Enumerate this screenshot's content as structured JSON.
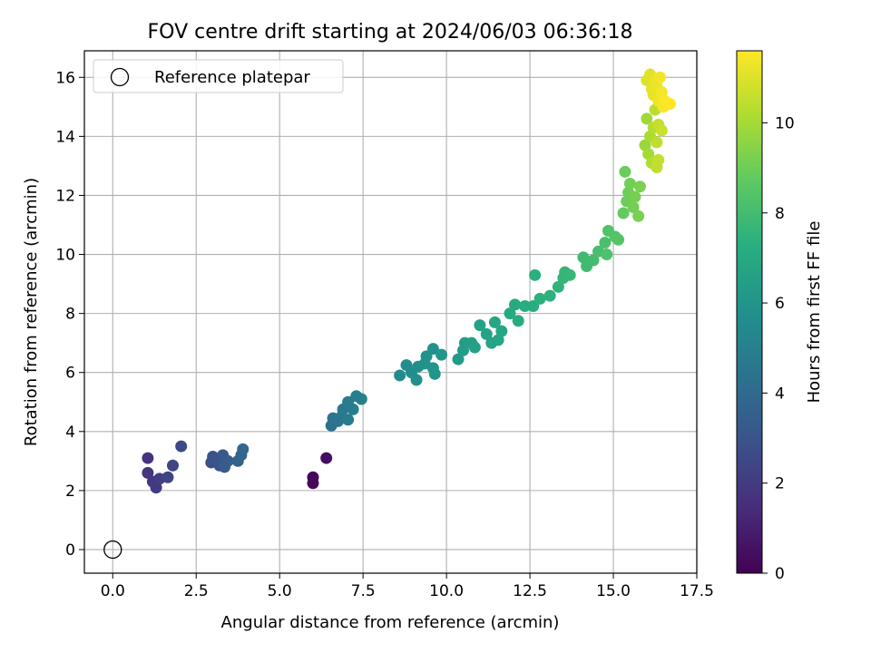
{
  "chart_data": {
    "type": "scatter",
    "title": "FOV centre drift starting at 2024/06/03 06:36:18",
    "xlabel": "Angular distance from reference (arcmin)",
    "ylabel": "Rotation from reference (arcmin)",
    "xlim": [
      -0.85,
      17.5
    ],
    "ylim": [
      -0.8,
      16.9
    ],
    "xticks": [
      0.0,
      2.5,
      5.0,
      7.5,
      10.0,
      12.5,
      15.0,
      17.5
    ],
    "xtick_labels": [
      "0.0",
      "2.5",
      "5.0",
      "7.5",
      "10.0",
      "12.5",
      "15.0",
      "17.5"
    ],
    "yticks": [
      0,
      2,
      4,
      6,
      8,
      10,
      12,
      14,
      16
    ],
    "ytick_labels": [
      "0",
      "2",
      "4",
      "6",
      "8",
      "10",
      "12",
      "14",
      "16"
    ],
    "grid": true,
    "legend": {
      "position": "top-left",
      "entries": [
        {
          "label": "Reference platepar",
          "marker": "open-circle"
        }
      ]
    },
    "reference_point": {
      "x": 0.0,
      "y": 0.0
    },
    "colorbar": {
      "label": "Hours from first FF file",
      "colormap": "viridis",
      "range": [
        0,
        11.6
      ],
      "ticks": [
        0,
        2,
        4,
        6,
        8,
        10
      ],
      "tick_labels": [
        "0",
        "2",
        "4",
        "6",
        "8",
        "10"
      ]
    },
    "points": [
      [
        6.0,
        2.45,
        0.2
      ],
      [
        6.0,
        2.25,
        0.3
      ],
      [
        6.4,
        3.1,
        0.5
      ],
      [
        1.05,
        3.1,
        1.7
      ],
      [
        1.05,
        2.6,
        1.8
      ],
      [
        1.2,
        2.3,
        1.9
      ],
      [
        1.3,
        2.1,
        2.0
      ],
      [
        1.4,
        2.4,
        2.1
      ],
      [
        1.65,
        2.45,
        2.3
      ],
      [
        1.8,
        2.85,
        2.4
      ],
      [
        2.05,
        3.5,
        2.5
      ],
      [
        2.95,
        2.95,
        2.8
      ],
      [
        3.0,
        3.15,
        2.9
      ],
      [
        3.15,
        3.0,
        3.0
      ],
      [
        3.2,
        2.85,
        3.1
      ],
      [
        3.3,
        3.2,
        3.2
      ],
      [
        3.35,
        2.8,
        3.3
      ],
      [
        3.45,
        3.0,
        3.4
      ],
      [
        3.75,
        3.0,
        3.6
      ],
      [
        3.85,
        3.2,
        3.7
      ],
      [
        3.9,
        3.4,
        3.8
      ],
      [
        6.55,
        4.2,
        4.3
      ],
      [
        6.6,
        4.45,
        4.4
      ],
      [
        6.75,
        4.35,
        4.5
      ],
      [
        6.85,
        4.5,
        4.6
      ],
      [
        6.9,
        4.75,
        4.7
      ],
      [
        7.05,
        4.4,
        4.75
      ],
      [
        7.05,
        5.0,
        4.8
      ],
      [
        7.2,
        4.75,
        4.85
      ],
      [
        7.3,
        5.2,
        4.9
      ],
      [
        7.45,
        5.1,
        5.0
      ],
      [
        8.6,
        5.9,
        5.5
      ],
      [
        8.8,
        6.25,
        5.6
      ],
      [
        8.95,
        6.0,
        5.65
      ],
      [
        9.1,
        5.75,
        5.7
      ],
      [
        9.15,
        6.2,
        5.75
      ],
      [
        9.35,
        6.3,
        5.8
      ],
      [
        9.4,
        6.55,
        5.85
      ],
      [
        9.6,
        6.8,
        5.9
      ],
      [
        9.6,
        6.15,
        5.95
      ],
      [
        9.65,
        5.95,
        6.0
      ],
      [
        9.85,
        6.6,
        6.05
      ],
      [
        10.35,
        6.45,
        6.3
      ],
      [
        10.5,
        6.75,
        6.35
      ],
      [
        10.55,
        7.0,
        6.4
      ],
      [
        10.75,
        7.0,
        6.5
      ],
      [
        10.85,
        6.85,
        6.55
      ],
      [
        11.0,
        7.6,
        6.6
      ],
      [
        11.2,
        7.3,
        6.7
      ],
      [
        11.35,
        7.0,
        6.75
      ],
      [
        11.45,
        7.7,
        6.8
      ],
      [
        11.55,
        7.1,
        6.85
      ],
      [
        11.65,
        7.4,
        6.9
      ],
      [
        11.9,
        8.0,
        7.0
      ],
      [
        12.05,
        8.3,
        7.05
      ],
      [
        12.15,
        7.75,
        7.1
      ],
      [
        12.35,
        8.25,
        7.15
      ],
      [
        12.6,
        8.25,
        7.2
      ],
      [
        12.65,
        9.3,
        7.3
      ],
      [
        12.8,
        8.5,
        7.35
      ],
      [
        13.1,
        8.6,
        7.4
      ],
      [
        13.35,
        8.9,
        7.5
      ],
      [
        13.5,
        9.2,
        7.6
      ],
      [
        13.55,
        9.4,
        7.65
      ],
      [
        13.7,
        9.3,
        7.7
      ],
      [
        14.1,
        9.9,
        7.9
      ],
      [
        14.2,
        9.6,
        7.95
      ],
      [
        14.4,
        9.8,
        8.0
      ],
      [
        14.55,
        10.1,
        8.1
      ],
      [
        14.75,
        10.4,
        8.2
      ],
      [
        14.8,
        10.0,
        8.25
      ],
      [
        14.85,
        10.8,
        8.3
      ],
      [
        15.05,
        10.6,
        8.4
      ],
      [
        15.15,
        10.5,
        8.45
      ],
      [
        15.3,
        11.4,
        8.8
      ],
      [
        15.35,
        12.8,
        8.9
      ],
      [
        15.4,
        11.8,
        8.95
      ],
      [
        15.45,
        12.1,
        9.0
      ],
      [
        15.5,
        12.4,
        9.05
      ],
      [
        15.6,
        11.6,
        9.1
      ],
      [
        15.65,
        11.95,
        9.15
      ],
      [
        15.75,
        11.3,
        9.2
      ],
      [
        15.8,
        12.3,
        9.25
      ],
      [
        15.95,
        13.7,
        9.8
      ],
      [
        16.0,
        14.6,
        9.9
      ],
      [
        16.05,
        13.4,
        10.0
      ],
      [
        16.1,
        14.0,
        10.1
      ],
      [
        16.15,
        13.1,
        10.2
      ],
      [
        16.2,
        14.3,
        10.3
      ],
      [
        16.25,
        14.9,
        10.4
      ],
      [
        16.3,
        13.8,
        10.45
      ],
      [
        16.3,
        12.95,
        10.5
      ],
      [
        16.35,
        13.2,
        10.55
      ],
      [
        16.35,
        14.4,
        10.6
      ],
      [
        16.45,
        14.2,
        10.65
      ],
      [
        16.0,
        15.9,
        11.0
      ],
      [
        16.1,
        16.1,
        11.1
      ],
      [
        16.15,
        15.6,
        11.15
      ],
      [
        16.2,
        15.4,
        11.2
      ],
      [
        16.25,
        15.9,
        11.25
      ],
      [
        16.3,
        15.7,
        11.3
      ],
      [
        16.35,
        15.2,
        11.35
      ],
      [
        16.4,
        16.0,
        11.4
      ],
      [
        16.45,
        15.5,
        11.45
      ],
      [
        16.5,
        15.0,
        11.5
      ],
      [
        16.55,
        15.2,
        11.55
      ],
      [
        16.7,
        15.1,
        11.6
      ]
    ]
  }
}
